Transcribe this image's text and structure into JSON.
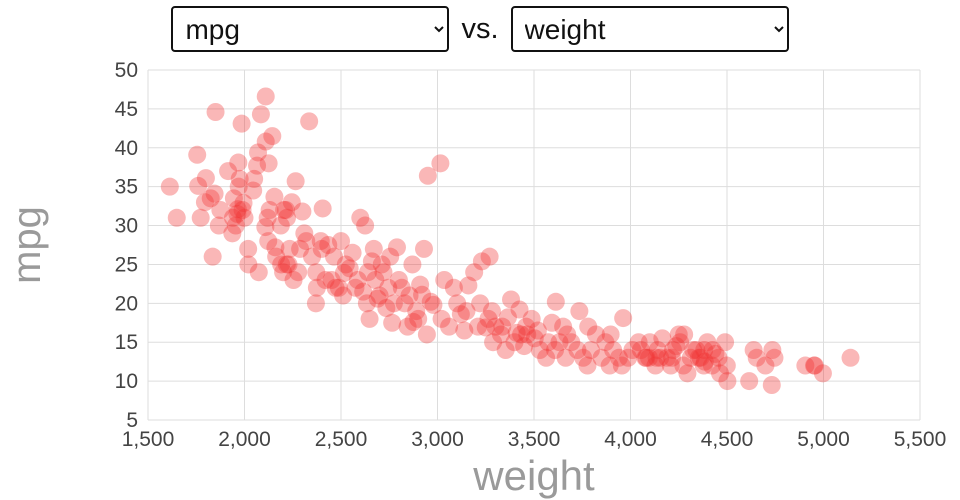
{
  "controls": {
    "y_select": {
      "value": "mpg"
    },
    "vs_label": "vs.",
    "x_select": {
      "value": "weight"
    }
  },
  "chart_data": {
    "type": "scatter",
    "title": "",
    "xlabel": "weight",
    "ylabel": "mpg",
    "xlim": [
      1500,
      5500
    ],
    "ylim": [
      5,
      50
    ],
    "grid": true,
    "grid_color": "#dddddd",
    "tick_color": "#444444",
    "axis_title_color": "#9a9a9a",
    "point_color": "#f03131",
    "point_opacity": 0.35,
    "point_radius": 9,
    "x_ticks": [
      1500,
      2000,
      2500,
      3000,
      3500,
      4000,
      4500,
      5000,
      5500
    ],
    "x_tick_labels": [
      "1,500",
      "2,000",
      "2,500",
      "3,000",
      "3,500",
      "4,000",
      "4,500",
      "5,000",
      "5,500"
    ],
    "y_ticks": [
      5,
      10,
      15,
      20,
      25,
      30,
      35,
      40,
      45,
      50
    ],
    "y_tick_labels": [
      "5",
      "10",
      "15",
      "20",
      "25",
      "30",
      "35",
      "40",
      "45",
      "50"
    ],
    "points": [
      [
        1613,
        35
      ],
      [
        1649,
        31
      ],
      [
        1755,
        39.1
      ],
      [
        1760,
        35.1
      ],
      [
        1773,
        31
      ],
      [
        1795,
        33
      ],
      [
        1800,
        36.1
      ],
      [
        1825,
        33.5
      ],
      [
        1835,
        26
      ],
      [
        1845,
        34.1
      ],
      [
        1850,
        44.6
      ],
      [
        1867,
        30
      ],
      [
        1875,
        32
      ],
      [
        1915,
        37
      ],
      [
        1937,
        29
      ],
      [
        1940,
        31
      ],
      [
        1945,
        33.5
      ],
      [
        1955,
        30
      ],
      [
        1963,
        31.5
      ],
      [
        1965,
        32.1
      ],
      [
        1968,
        38.1
      ],
      [
        1970,
        35
      ],
      [
        1975,
        36
      ],
      [
        1985,
        43.1
      ],
      [
        1990,
        32
      ],
      [
        1995,
        32.9
      ],
      [
        2000,
        31
      ],
      [
        2019,
        27
      ],
      [
        2020,
        25
      ],
      [
        2045,
        34.5
      ],
      [
        2050,
        36
      ],
      [
        2065,
        37.7
      ],
      [
        2070,
        39.4
      ],
      [
        2074,
        24
      ],
      [
        2085,
        44.3
      ],
      [
        2108,
        29.8
      ],
      [
        2110,
        46.6
      ],
      [
        2110,
        40.8
      ],
      [
        2120,
        31
      ],
      [
        2123,
        28
      ],
      [
        2125,
        38
      ],
      [
        2130,
        32
      ],
      [
        2144,
        41.5
      ],
      [
        2155,
        33.7
      ],
      [
        2160,
        27.2
      ],
      [
        2164,
        26
      ],
      [
        2188,
        30
      ],
      [
        2190,
        25
      ],
      [
        2200,
        24
      ],
      [
        2205,
        32
      ],
      [
        2215,
        32
      ],
      [
        2219,
        25
      ],
      [
        2220,
        31
      ],
      [
        2228,
        25
      ],
      [
        2234,
        27
      ],
      [
        2245,
        33
      ],
      [
        2254,
        23
      ],
      [
        2265,
        35.7
      ],
      [
        2278,
        24
      ],
      [
        2288,
        27
      ],
      [
        2300,
        31.8
      ],
      [
        2310,
        29
      ],
      [
        2320,
        28
      ],
      [
        2335,
        43.4
      ],
      [
        2350,
        26
      ],
      [
        2370,
        20
      ],
      [
        2372,
        24
      ],
      [
        2375,
        22
      ],
      [
        2395,
        28
      ],
      [
        2400,
        27
      ],
      [
        2405,
        32.2
      ],
      [
        2420,
        23
      ],
      [
        2434,
        27.5
      ],
      [
        2451,
        23
      ],
      [
        2464,
        26
      ],
      [
        2472,
        22
      ],
      [
        2489,
        22
      ],
      [
        2500,
        28
      ],
      [
        2511,
        21
      ],
      [
        2515,
        23.9
      ],
      [
        2525,
        25
      ],
      [
        2545,
        24.5
      ],
      [
        2560,
        26.5
      ],
      [
        2575,
        22
      ],
      [
        2587,
        23
      ],
      [
        2600,
        31
      ],
      [
        2615,
        21.5
      ],
      [
        2625,
        30
      ],
      [
        2634,
        20
      ],
      [
        2640,
        24
      ],
      [
        2648,
        18
      ],
      [
        2660,
        25.4
      ],
      [
        2670,
        27
      ],
      [
        2678,
        23
      ],
      [
        2690,
        20.6
      ],
      [
        2700,
        21
      ],
      [
        2711,
        25
      ],
      [
        2720,
        24
      ],
      [
        2735,
        19.4
      ],
      [
        2745,
        22
      ],
      [
        2755,
        26
      ],
      [
        2765,
        17.5
      ],
      [
        2774,
        20
      ],
      [
        2790,
        27.2
      ],
      [
        2800,
        23
      ],
      [
        2815,
        22
      ],
      [
        2830,
        20
      ],
      [
        2845,
        17
      ],
      [
        2855,
        21
      ],
      [
        2870,
        25
      ],
      [
        2875,
        17.6
      ],
      [
        2890,
        19
      ],
      [
        2900,
        18
      ],
      [
        2910,
        22.4
      ],
      [
        2920,
        21.1
      ],
      [
        2930,
        27
      ],
      [
        2945,
        16
      ],
      [
        2950,
        36.4
      ],
      [
        2965,
        20.2
      ],
      [
        2979,
        19.8
      ],
      [
        3015,
        38
      ],
      [
        3021,
        18
      ],
      [
        3035,
        23
      ],
      [
        3060,
        17
      ],
      [
        3085,
        22
      ],
      [
        3102,
        20
      ],
      [
        3121,
        18.6
      ],
      [
        3139,
        16.5
      ],
      [
        3150,
        19
      ],
      [
        3160,
        22.3
      ],
      [
        3190,
        24
      ],
      [
        3210,
        17
      ],
      [
        3221,
        20
      ],
      [
        3230,
        25.4
      ],
      [
        3250,
        16.9
      ],
      [
        3264,
        18
      ],
      [
        3270,
        26
      ],
      [
        3282,
        19
      ],
      [
        3288,
        15
      ],
      [
        3300,
        17
      ],
      [
        3329,
        16
      ],
      [
        3336,
        17
      ],
      [
        3353,
        14
      ],
      [
        3365,
        18.2
      ],
      [
        3381,
        20.5
      ],
      [
        3399,
        15
      ],
      [
        3410,
        16.2
      ],
      [
        3425,
        19.2
      ],
      [
        3433,
        16
      ],
      [
        3449,
        14.5
      ],
      [
        3459,
        17
      ],
      [
        3465,
        16
      ],
      [
        3488,
        18
      ],
      [
        3504,
        15.5
      ],
      [
        3520,
        16.5
      ],
      [
        3530,
        14
      ],
      [
        3563,
        13
      ],
      [
        3574,
        15
      ],
      [
        3593,
        17.5
      ],
      [
        3609,
        14
      ],
      [
        3613,
        20.2
      ],
      [
        3632,
        15
      ],
      [
        3651,
        17
      ],
      [
        3664,
        13
      ],
      [
        3672,
        16
      ],
      [
        3693,
        15
      ],
      [
        3725,
        14
      ],
      [
        3735,
        19
      ],
      [
        3755,
        13
      ],
      [
        3777,
        12
      ],
      [
        3781,
        17
      ],
      [
        3795,
        14
      ],
      [
        3821,
        16
      ],
      [
        3850,
        13
      ],
      [
        3870,
        15
      ],
      [
        3892,
        12
      ],
      [
        3897,
        16
      ],
      [
        3910,
        14
      ],
      [
        3940,
        13
      ],
      [
        3955,
        12
      ],
      [
        3962,
        18.1
      ],
      [
        3988,
        13
      ],
      [
        4010,
        14
      ],
      [
        4042,
        15
      ],
      [
        4054,
        14
      ],
      [
        4077,
        13
      ],
      [
        4082,
        13
      ],
      [
        4096,
        13
      ],
      [
        4100,
        15
      ],
      [
        4129,
        12
      ],
      [
        4135,
        13
      ],
      [
        4141,
        14
      ],
      [
        4154,
        13
      ],
      [
        4165,
        15.5
      ],
      [
        4190,
        13
      ],
      [
        4209,
        12
      ],
      [
        4215,
        13
      ],
      [
        4220,
        14
      ],
      [
        4237,
        14.5
      ],
      [
        4250,
        16
      ],
      [
        4257,
        15
      ],
      [
        4274,
        12
      ],
      [
        4278,
        16
      ],
      [
        4295,
        11
      ],
      [
        4312,
        13
      ],
      [
        4325,
        14
      ],
      [
        4341,
        14
      ],
      [
        4354,
        13
      ],
      [
        4363,
        13
      ],
      [
        4380,
        12
      ],
      [
        4382,
        14
      ],
      [
        4385,
        12.5
      ],
      [
        4398,
        15
      ],
      [
        4422,
        12
      ],
      [
        4425,
        14
      ],
      [
        4440,
        13.5
      ],
      [
        4456,
        13
      ],
      [
        4464,
        11
      ],
      [
        4490,
        15
      ],
      [
        4499,
        12
      ],
      [
        4502,
        10
      ],
      [
        4615,
        10
      ],
      [
        4638,
        14
      ],
      [
        4654,
        13
      ],
      [
        4699,
        12
      ],
      [
        4732,
        9.5
      ],
      [
        4735,
        14
      ],
      [
        4746,
        13
      ],
      [
        4906,
        12
      ],
      [
        4951,
        12
      ],
      [
        4955,
        12
      ],
      [
        4997,
        11
      ],
      [
        5140,
        13
      ]
    ]
  }
}
